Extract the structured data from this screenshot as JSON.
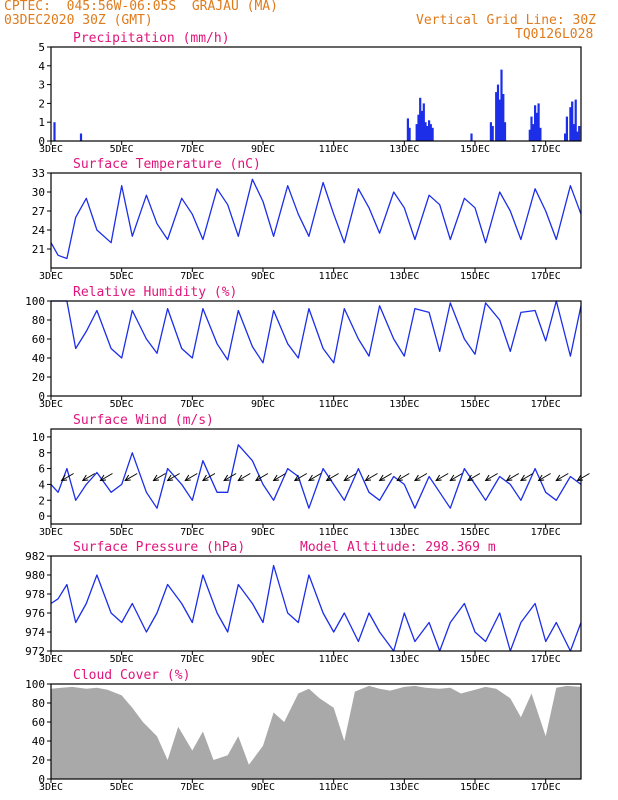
{
  "header": {
    "left_line1": "CPTEC:  045:56W-06:05S  GRAJAU (MA)",
    "left_line2": "03DEC2020 30Z (GMT)",
    "right_line1": "Vertical Grid Line: 30Z",
    "right_line2": "TQ0126L028"
  },
  "colors": {
    "title": "#e0157b",
    "header": "#e07b1c",
    "line": "#1c2ee8",
    "bar": "#1c2ee8",
    "cloud": "#a9a9a9"
  },
  "x_axis": {
    "ticks": [
      "3DEC",
      "5DEC",
      "7DEC",
      "9DEC",
      "11DEC",
      "13DEC",
      "15DEC",
      "17DEC"
    ],
    "tick_days": [
      3,
      5,
      7,
      9,
      11,
      13,
      15,
      17
    ],
    "range_days": [
      3,
      18
    ]
  },
  "chart_data": [
    {
      "id": "precip",
      "type": "bar",
      "title": "Precipitation (mm/h)",
      "ylim": [
        0,
        5
      ],
      "yticks": [
        0,
        1,
        2,
        3,
        4,
        5
      ],
      "x": [
        3.1,
        3.85,
        13.1,
        13.15,
        13.35,
        13.4,
        13.45,
        13.5,
        13.55,
        13.6,
        13.65,
        13.7,
        13.75,
        13.8,
        14.9,
        15.45,
        15.5,
        15.6,
        15.65,
        15.7,
        15.75,
        15.8,
        15.85,
        16.55,
        16.6,
        16.65,
        16.7,
        16.75,
        16.8,
        16.85,
        17.55,
        17.6,
        17.7,
        17.75,
        17.8,
        17.85,
        17.9,
        17.95
      ],
      "values": [
        1.0,
        0.4,
        1.2,
        0.7,
        0.9,
        1.4,
        2.3,
        1.6,
        2.0,
        1.0,
        0.8,
        1.1,
        0.9,
        0.7,
        0.4,
        1.0,
        0.8,
        2.6,
        3.0,
        2.2,
        3.8,
        2.5,
        1.0,
        0.6,
        1.3,
        0.9,
        1.9,
        1.5,
        2.0,
        0.7,
        0.4,
        1.3,
        1.8,
        2.1,
        0.9,
        2.2,
        0.5,
        0.8
      ]
    },
    {
      "id": "temp",
      "type": "line",
      "title": "Surface Temperature (nC)",
      "ylim": [
        18,
        33
      ],
      "yticks": [
        21,
        24,
        27,
        30,
        33
      ],
      "x": [
        3.0,
        3.2,
        3.45,
        3.7,
        4.0,
        4.3,
        4.7,
        5.0,
        5.3,
        5.7,
        6.0,
        6.3,
        6.7,
        7.0,
        7.3,
        7.7,
        8.0,
        8.3,
        8.7,
        9.0,
        9.3,
        9.7,
        10.0,
        10.3,
        10.7,
        11.0,
        11.3,
        11.7,
        12.0,
        12.3,
        12.7,
        13.0,
        13.3,
        13.7,
        14.0,
        14.3,
        14.7,
        15.0,
        15.3,
        15.7,
        16.0,
        16.3,
        16.7,
        17.0,
        17.3,
        17.7,
        18.0
      ],
      "values": [
        22,
        20,
        19.5,
        26,
        29,
        24,
        22,
        31,
        23,
        29.5,
        25,
        22.5,
        29,
        26.5,
        22.5,
        30.5,
        28,
        23,
        32,
        28.5,
        23,
        31,
        26.5,
        23,
        31.5,
        26.5,
        22,
        30.5,
        27.5,
        23.5,
        30,
        27.5,
        22.5,
        29.5,
        28,
        22.5,
        29,
        27.5,
        22,
        30,
        27,
        22.5,
        30.5,
        27,
        22.5,
        31,
        26.5
      ]
    },
    {
      "id": "rh",
      "type": "line",
      "title": "Relative Humidity (%)",
      "ylim": [
        0,
        100
      ],
      "yticks": [
        0,
        20,
        40,
        60,
        80,
        100
      ],
      "x": [
        3.0,
        3.2,
        3.45,
        3.7,
        4.0,
        4.3,
        4.7,
        5.0,
        5.3,
        5.7,
        6.0,
        6.3,
        6.7,
        7.0,
        7.3,
        7.7,
        8.0,
        8.3,
        8.7,
        9.0,
        9.3,
        9.7,
        10.0,
        10.3,
        10.7,
        11.0,
        11.3,
        11.7,
        12.0,
        12.3,
        12.7,
        13.0,
        13.3,
        13.7,
        14.0,
        14.3,
        14.7,
        15.0,
        15.3,
        15.7,
        16.0,
        16.3,
        16.7,
        17.0,
        17.3,
        17.7,
        18.0
      ],
      "values": [
        100,
        100,
        100,
        50,
        68,
        90,
        50,
        40,
        90,
        60,
        45,
        92,
        50,
        40,
        92,
        55,
        38,
        90,
        52,
        35,
        90,
        55,
        40,
        92,
        50,
        35,
        92,
        60,
        42,
        95,
        60,
        42,
        92,
        88,
        47,
        98,
        60,
        44,
        98,
        80,
        47,
        88,
        90,
        58,
        100,
        42,
        95
      ]
    },
    {
      "id": "wind",
      "type": "line",
      "title": "Surface Wind (m/s)",
      "ylim": [
        -1,
        11
      ],
      "yticks": [
        0,
        2,
        4,
        6,
        8,
        10
      ],
      "x": [
        3.0,
        3.2,
        3.45,
        3.7,
        4.0,
        4.3,
        4.7,
        5.0,
        5.3,
        5.7,
        6.0,
        6.3,
        6.7,
        7.0,
        7.3,
        7.7,
        8.0,
        8.3,
        8.7,
        9.0,
        9.3,
        9.7,
        10.0,
        10.3,
        10.7,
        11.0,
        11.3,
        11.7,
        12.0,
        12.3,
        12.7,
        13.0,
        13.3,
        13.7,
        14.0,
        14.3,
        14.7,
        15.0,
        15.3,
        15.7,
        16.0,
        16.3,
        16.7,
        17.0,
        17.3,
        17.7,
        18.0
      ],
      "values": [
        4,
        3,
        6,
        2,
        4,
        5.5,
        3,
        4,
        8,
        3,
        1,
        6,
        4,
        2,
        7,
        3,
        3,
        9,
        7,
        4,
        2,
        6,
        5,
        1,
        6,
        4,
        2,
        6,
        3,
        2,
        5,
        4,
        1,
        5,
        3,
        1,
        6,
        4,
        2,
        5,
        4,
        2,
        6,
        3,
        2,
        5,
        4
      ],
      "vectors": [
        3.3,
        3.9,
        4.4,
        5.1,
        5.9,
        6.3,
        6.8,
        7.3,
        7.9,
        8.3,
        8.8,
        9.3,
        9.9,
        10.3,
        10.8,
        11.3,
        11.9,
        12.3,
        12.8,
        13.3,
        13.9,
        14.3,
        14.8,
        15.3,
        15.9,
        16.3,
        16.8,
        17.3,
        17.9
      ]
    },
    {
      "id": "pressure",
      "type": "line",
      "title": "Surface Pressure (hPa)",
      "annotation": "Model Altitude: 298.369 m",
      "ylim": [
        972,
        982
      ],
      "yticks": [
        972,
        974,
        976,
        978,
        980,
        982
      ],
      "x": [
        3.0,
        3.2,
        3.45,
        3.7,
        4.0,
        4.3,
        4.7,
        5.0,
        5.3,
        5.7,
        6.0,
        6.3,
        6.7,
        7.0,
        7.3,
        7.7,
        8.0,
        8.3,
        8.7,
        9.0,
        9.3,
        9.7,
        10.0,
        10.3,
        10.7,
        11.0,
        11.3,
        11.7,
        12.0,
        12.3,
        12.7,
        13.0,
        13.3,
        13.7,
        14.0,
        14.3,
        14.7,
        15.0,
        15.3,
        15.7,
        16.0,
        16.3,
        16.7,
        17.0,
        17.3,
        17.7,
        18.0
      ],
      "values": [
        977,
        977.5,
        979,
        975,
        977,
        980,
        976,
        975,
        977,
        974,
        976,
        979,
        977,
        975,
        980,
        976,
        974,
        979,
        977,
        975,
        981,
        976,
        975,
        980,
        976,
        974,
        976,
        973,
        976,
        974,
        972,
        976,
        973,
        975,
        972,
        975,
        977,
        974,
        973,
        976,
        972,
        975,
        977,
        973,
        975,
        972,
        975
      ]
    },
    {
      "id": "cloud",
      "type": "area",
      "title": "Cloud Cover (%)",
      "ylim": [
        0,
        100
      ],
      "yticks": [
        0,
        20,
        40,
        60,
        80,
        100
      ],
      "x": [
        3.0,
        3.3,
        3.6,
        4.0,
        4.3,
        4.6,
        5.0,
        5.3,
        5.6,
        6.0,
        6.3,
        6.6,
        7.0,
        7.3,
        7.6,
        8.0,
        8.3,
        8.6,
        9.0,
        9.3,
        9.6,
        10.0,
        10.3,
        10.6,
        11.0,
        11.3,
        11.6,
        12.0,
        12.3,
        12.6,
        13.0,
        13.3,
        13.6,
        14.0,
        14.3,
        14.6,
        15.0,
        15.3,
        15.6,
        16.0,
        16.3,
        16.6,
        17.0,
        17.3,
        17.6,
        18.0
      ],
      "values": [
        95,
        96,
        97,
        95,
        96,
        94,
        88,
        75,
        60,
        45,
        20,
        55,
        30,
        50,
        20,
        25,
        45,
        15,
        35,
        70,
        60,
        90,
        95,
        85,
        75,
        40,
        92,
        98,
        95,
        93,
        97,
        98,
        96,
        95,
        96,
        90,
        94,
        97,
        95,
        85,
        65,
        90,
        45,
        96,
        98,
        97
      ]
    }
  ]
}
